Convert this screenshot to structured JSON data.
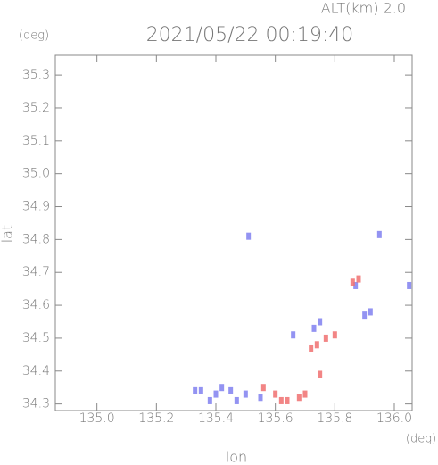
{
  "chart_data": {
    "type": "scatter",
    "title": "2021/05/22 00:19:40",
    "subtitle": "ALT(km) 2.0",
    "y_unit": "(deg)",
    "x_unit": "(deg)",
    "xlabel": "lon",
    "ylabel": "lat",
    "xlim": [
      134.86,
      136.06
    ],
    "ylim": [
      34.28,
      35.36
    ],
    "xticks": [
      {
        "value": 135,
        "label": "135.0"
      },
      135.2,
      135.4,
      135.6,
      135.8,
      {
        "value": 136,
        "label": "136.0"
      }
    ],
    "yticks": [
      34.3,
      34.4,
      34.5,
      34.6,
      34.7,
      34.8,
      34.9,
      {
        "value": 35,
        "label": "35.0"
      },
      35.1,
      35.2,
      35.3
    ],
    "series": [
      {
        "color": "#8080f0",
        "x": [
          135.51,
          135.95,
          135.87,
          135.9,
          135.92,
          136.05,
          135.73,
          135.75,
          135.66,
          135.35,
          135.4,
          135.45,
          135.5,
          135.55,
          135.38,
          135.33,
          135.47,
          135.42
        ],
        "y": [
          34.81,
          34.815,
          34.66,
          34.57,
          34.58,
          34.66,
          34.53,
          34.55,
          34.51,
          34.34,
          34.33,
          34.34,
          34.33,
          34.32,
          34.31,
          34.34,
          34.31,
          34.35
        ]
      },
      {
        "color": "#f07070",
        "x": [
          135.88,
          135.74,
          135.77,
          135.8,
          135.72,
          135.75,
          135.64,
          135.68,
          135.6,
          135.7,
          135.56,
          135.62,
          135.86
        ],
        "y": [
          34.68,
          34.48,
          34.5,
          34.51,
          34.47,
          34.39,
          34.31,
          34.32,
          34.33,
          34.33,
          34.35,
          34.31,
          34.67
        ]
      }
    ]
  }
}
